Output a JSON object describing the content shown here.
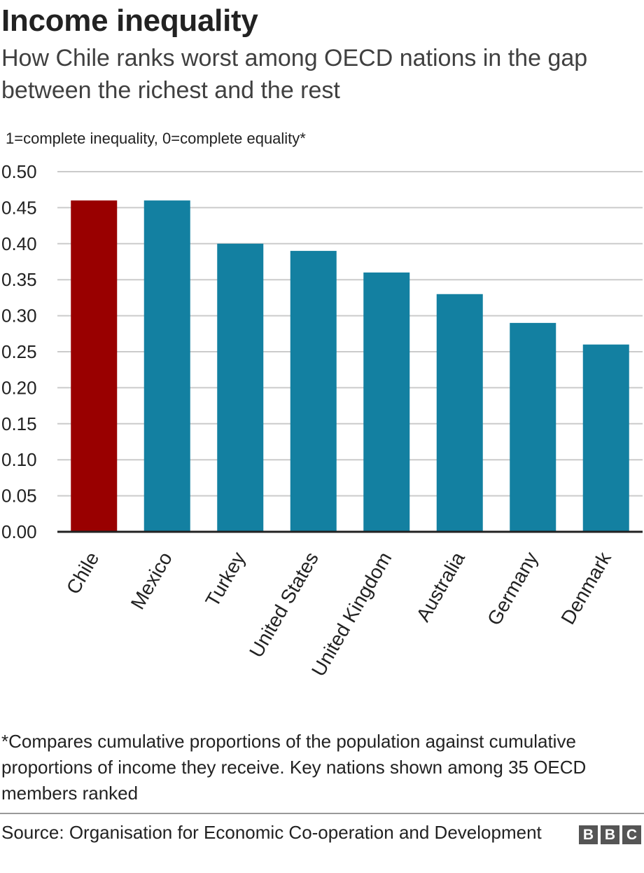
{
  "header": {
    "title": "Income inequality",
    "subtitle": "How Chile ranks worst among OECD nations in the gap between the richest and the rest",
    "note": "1=complete inequality, 0=complete equality*"
  },
  "footer": {
    "footnote": "*Compares cumulative proportions of the population against cumulative proportions of income they receive. Key nations shown among 35 OECD members ranked",
    "source": "Source: Organisation for Economic Co-operation and Development",
    "logo_letters": [
      "B",
      "B",
      "C"
    ]
  },
  "colors": {
    "highlight": "#990000",
    "bar": "#1380A1",
    "grid": "#cbcbcb",
    "axis": "#222222",
    "text": "#222222"
  },
  "chart_data": {
    "type": "bar",
    "title": "Income inequality",
    "subtitle": "How Chile ranks worst among OECD nations in the gap between the richest and the rest",
    "ylabel": "1=complete inequality, 0=complete equality*",
    "xlabel": "",
    "categories": [
      "Chile",
      "Mexico",
      "Turkey",
      "United States",
      "United Kingdom",
      "Australia",
      "Germany",
      "Denmark"
    ],
    "values": [
      0.46,
      0.46,
      0.4,
      0.39,
      0.36,
      0.33,
      0.29,
      0.26
    ],
    "highlight": "Chile",
    "ylim": [
      0,
      0.5
    ],
    "yticks": [
      "0.00",
      "0.05",
      "0.10",
      "0.15",
      "0.20",
      "0.25",
      "0.30",
      "0.35",
      "0.40",
      "0.45",
      "0.50"
    ],
    "grid": true,
    "legend": "none"
  }
}
